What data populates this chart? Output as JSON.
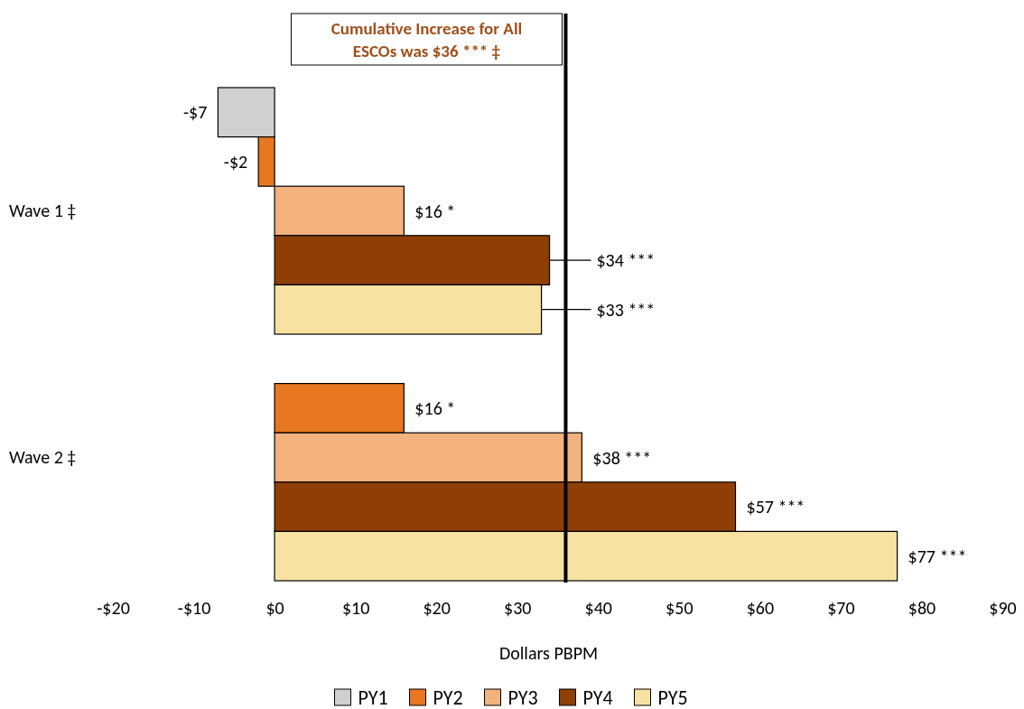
{
  "chart_data": {
    "type": "bar",
    "orientation": "horizontal",
    "categories": [
      "Wave 1 ‡",
      "Wave 2 ‡"
    ],
    "series": [
      {
        "name": "PY1",
        "color": "#d0d0d0",
        "values": [
          -7,
          null
        ],
        "value_labels": [
          "-$7",
          null
        ]
      },
      {
        "name": "PY2",
        "color": "#e87722",
        "values": [
          -2,
          16
        ],
        "value_labels": [
          "-$2",
          "$16 *"
        ]
      },
      {
        "name": "PY3",
        "color": "#f3b27e",
        "values": [
          16,
          38
        ],
        "value_labels": [
          "$16 *",
          "$38 ***"
        ]
      },
      {
        "name": "PY4",
        "color": "#8f3f06",
        "values": [
          34,
          57
        ],
        "value_labels": [
          "$34 ***",
          "$57 ***"
        ]
      },
      {
        "name": "PY5",
        "color": "#f7e2a2",
        "values": [
          33,
          77
        ],
        "value_labels": [
          "$33 ***",
          "$77 ***"
        ]
      }
    ],
    "xlim": [
      -20,
      90
    ],
    "xticks": [
      {
        "value": -20,
        "label": "-$20"
      },
      {
        "value": -10,
        "label": "-$10"
      },
      {
        "value": 0,
        "label": "$0"
      },
      {
        "value": 10,
        "label": "$10"
      },
      {
        "value": 20,
        "label": "$20"
      },
      {
        "value": 30,
        "label": "$30"
      },
      {
        "value": 40,
        "label": "$40"
      },
      {
        "value": 50,
        "label": "$50"
      },
      {
        "value": 60,
        "label": "$60"
      },
      {
        "value": 70,
        "label": "$70"
      },
      {
        "value": 80,
        "label": "$80"
      },
      {
        "value": 90,
        "label": "$90"
      }
    ],
    "xlabel": "Dollars PBPM",
    "ref_lines": [
      {
        "axis": "x",
        "value": 36,
        "label": "Cumulative Increase for All ESCOs was $36 *** ‡",
        "color": "#000000"
      }
    ],
    "grid": false,
    "legend": "bottom"
  }
}
